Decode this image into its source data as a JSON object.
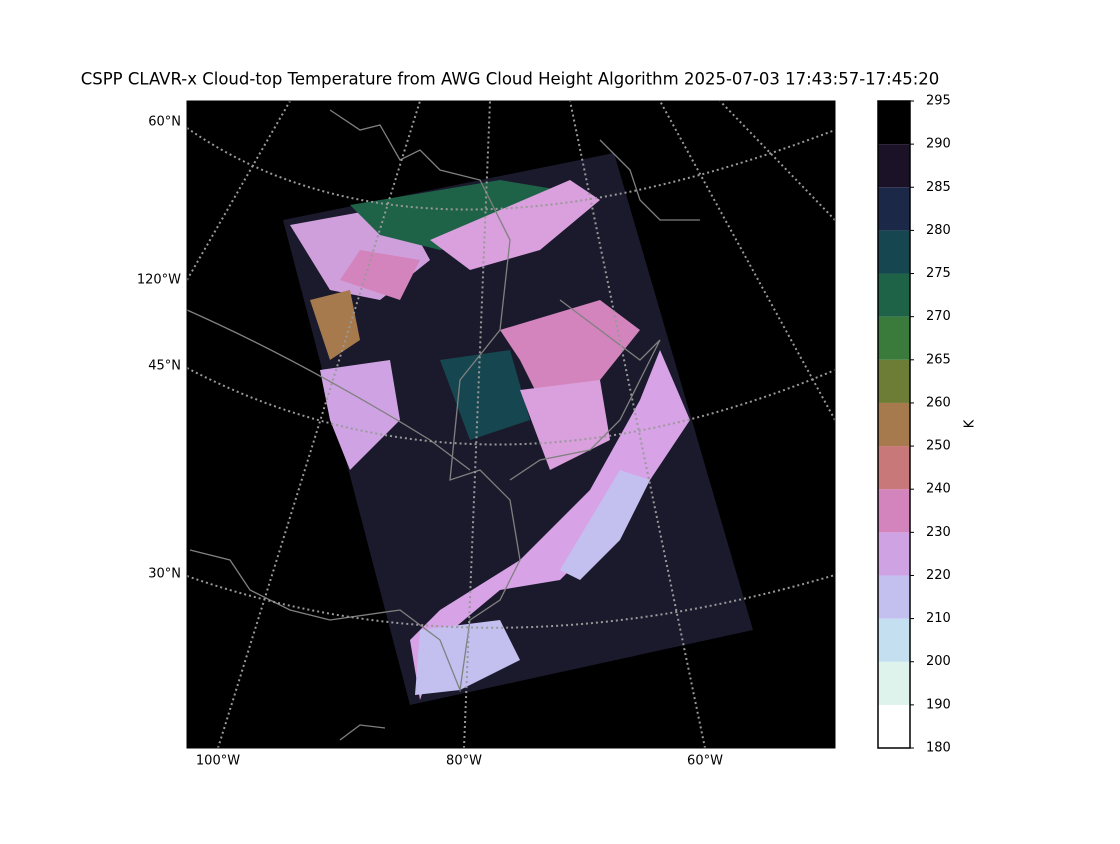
{
  "title": "CSPP CLAVR-x Cloud-top Temperature from AWG Cloud Height Algorithm 2025-07-03 17:43:57-17:45:20",
  "map": {
    "lat_labels": [
      "60°N",
      "120°W",
      "45°N",
      "30°N"
    ],
    "lon_labels": [
      "100°W",
      "80°W",
      "60°W"
    ]
  },
  "colorbar": {
    "label": "K",
    "ticks": [
      180,
      190,
      200,
      210,
      220,
      230,
      240,
      250,
      260,
      265,
      270,
      275,
      280,
      285,
      290,
      295
    ],
    "colors": [
      "#ffffff",
      "#ddf3ec",
      "#c4e0f0",
      "#c3c0f0",
      "#cfa3e3",
      "#d384bd",
      "#c87878",
      "#a67a4d",
      "#6e7d35",
      "#3a7a3a",
      "#1e6248",
      "#164650",
      "#1c2848",
      "#1c1228",
      "#000000"
    ]
  }
}
